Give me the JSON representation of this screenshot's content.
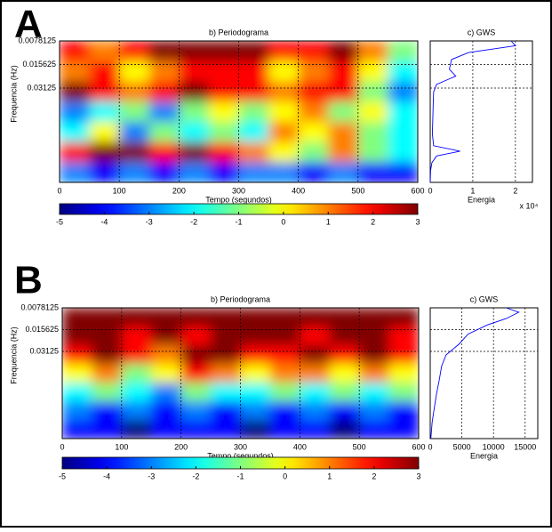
{
  "chart_data": [
    {
      "type": "heatmap",
      "panel": "A",
      "title": "b) Periodograma",
      "xlabel": "Tempo (segundos)",
      "ylabel": "Frequencia (Hz)",
      "xlim": [
        0,
        600
      ],
      "xticks": [
        0,
        100,
        200,
        300,
        400,
        500,
        600
      ],
      "ylim": [
        0.0078125,
        0.5
      ],
      "yticks": [
        0.0078125,
        0.015625,
        0.03125
      ],
      "log_y": true,
      "grid": true,
      "clim": [
        -5,
        3
      ],
      "cticks": [
        -5,
        -4,
        -3,
        -2,
        -1,
        0,
        1,
        2,
        3
      ],
      "z": [
        [
          2,
          1,
          2,
          3,
          3,
          3,
          3,
          2,
          2,
          3,
          1,
          -1
        ],
        [
          1,
          2,
          0,
          1,
          2,
          2,
          2,
          0,
          1,
          2,
          0,
          -2
        ],
        [
          3,
          2,
          1,
          2,
          3,
          2,
          2,
          1,
          2,
          2,
          -1,
          -3
        ],
        [
          -3,
          -2,
          -1,
          -3,
          -1,
          0,
          -1,
          0,
          1,
          -1,
          0,
          -2
        ],
        [
          -2,
          0,
          -3,
          -1,
          -2,
          -1,
          -2,
          1,
          0,
          1,
          -1,
          -2
        ],
        [
          2,
          3,
          3,
          2,
          3,
          2,
          1,
          0,
          -1,
          1,
          -1,
          -2
        ],
        [
          -3,
          -4,
          -3,
          -4,
          -3,
          -4,
          -3,
          -3,
          -4,
          -3,
          -4,
          -4
        ]
      ]
    },
    {
      "type": "line",
      "title": "c) GWS",
      "xlabel": "Energia",
      "multiplier": "x 10⁴",
      "color": "#0000ff",
      "xlim": [
        0,
        24000
      ],
      "xticks": [
        {
          "value": 0,
          "label": "0"
        },
        {
          "value": 10000,
          "label": "1"
        },
        {
          "value": 20000,
          "label": "2"
        }
      ],
      "ylim": [
        0.0078125,
        0.5
      ],
      "yticks": [
        0.0078125,
        0.015625,
        0.03125
      ],
      "log_y": true,
      "grid": true,
      "y": [
        0.0078125,
        0.009,
        0.011,
        0.0135,
        0.018,
        0.022,
        0.028,
        0.035,
        0.05,
        0.08,
        0.12,
        0.17,
        0.2,
        0.23,
        0.28,
        0.35,
        0.5
      ],
      "values": [
        19000,
        20000,
        9000,
        5000,
        4500,
        6000,
        1500,
        800,
        700,
        600,
        500,
        800,
        7000,
        1500,
        400,
        100,
        0
      ]
    },
    {
      "type": "heatmap",
      "panel": "B",
      "title": "b) Periodograma",
      "xlabel": "Tempo (segundos)",
      "ylabel": "Frequencia (Hz)",
      "xlim": [
        0,
        600
      ],
      "xticks": [
        0,
        100,
        200,
        300,
        400,
        500,
        600
      ],
      "ylim": [
        0.0078125,
        0.5
      ],
      "yticks": [
        0.0078125,
        0.015625,
        0.03125
      ],
      "log_y": true,
      "grid": true,
      "clim": [
        -5,
        3
      ],
      "cticks": [
        -5,
        -4,
        -3,
        -2,
        -1,
        0,
        1,
        2,
        3
      ],
      "z": [
        [
          3,
          3,
          3,
          3,
          3,
          3,
          3,
          3,
          3,
          3,
          3,
          3
        ],
        [
          3,
          3,
          2,
          3,
          2,
          3,
          3,
          3,
          2,
          3,
          3,
          2
        ],
        [
          2,
          3,
          2,
          1,
          3,
          3,
          2,
          2,
          3,
          2,
          3,
          2
        ],
        [
          0,
          1,
          -1,
          0,
          2,
          1,
          0,
          1,
          1,
          0,
          1,
          0
        ],
        [
          -2,
          -1,
          -2,
          -3,
          -1,
          -2,
          -2,
          -1,
          -2,
          -1,
          -2,
          -1
        ],
        [
          -3,
          -4,
          -3,
          -4,
          -3,
          -4,
          -3,
          -4,
          -3,
          -4,
          -3,
          -4
        ],
        [
          -4,
          -4,
          -5,
          -4,
          -4,
          -4,
          -5,
          -4,
          -4,
          -5,
          -4,
          -4
        ]
      ]
    },
    {
      "type": "line",
      "title": "c) GWS",
      "xlabel": "Energia",
      "color": "#0000ff",
      "xlim": [
        0,
        17000
      ],
      "xticks": [
        0,
        5000,
        10000,
        15000
      ],
      "ylim": [
        0.0078125,
        0.5
      ],
      "yticks": [
        0.0078125,
        0.015625,
        0.03125
      ],
      "log_y": true,
      "grid": true,
      "y": [
        0.0078125,
        0.009,
        0.011,
        0.0135,
        0.018,
        0.025,
        0.035,
        0.05,
        0.08,
        0.12,
        0.2,
        0.3,
        0.5
      ],
      "values": [
        12000,
        14000,
        12000,
        9000,
        6000,
        4500,
        2500,
        1800,
        1400,
        1000,
        600,
        300,
        100
      ]
    }
  ]
}
